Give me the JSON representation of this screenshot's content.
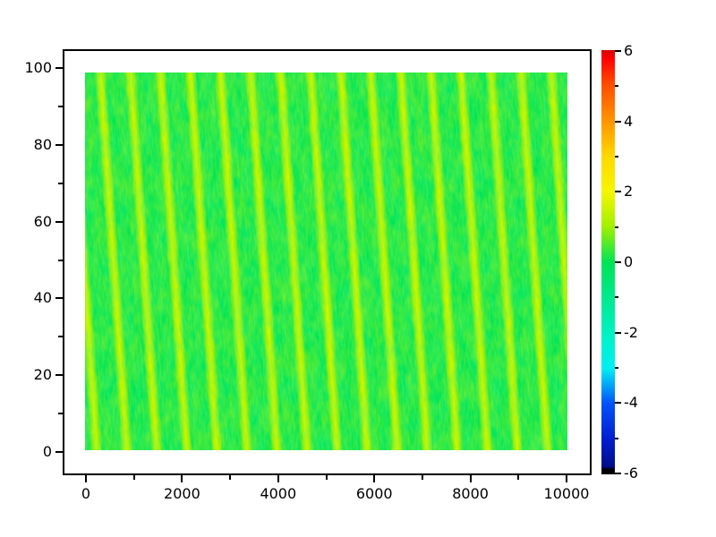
{
  "figure": {
    "background": "#ffffff",
    "text_color": "#000000",
    "axis_line_color": "#000000",
    "title": ""
  },
  "chart_data": {
    "type": "heatmap",
    "title": "",
    "grid": false,
    "x_axis": {
      "label": "",
      "min": 0,
      "max": 10000,
      "major_ticks": [
        0,
        2000,
        4000,
        6000,
        8000,
        10000
      ],
      "major_tick_labels": [
        "0",
        "2000",
        "4000",
        "6000",
        "8000",
        "10000"
      ],
      "minor_ticks": [
        1000,
        3000,
        5000,
        7000,
        9000
      ]
    },
    "y_axis": {
      "label": "",
      "min": 0,
      "max": 100,
      "major_ticks": [
        0,
        20,
        40,
        60,
        80,
        100
      ],
      "major_tick_labels": [
        "0",
        "20",
        "40",
        "60",
        "80",
        "100"
      ],
      "minor_ticks": [
        10,
        30,
        50,
        70,
        90
      ]
    },
    "colorbar": {
      "position": "right",
      "min": -6,
      "max": 6,
      "major_ticks": [
        6,
        4,
        2,
        0,
        -2,
        -4,
        -6
      ],
      "major_tick_labels": [
        "6",
        "4",
        "2",
        "0",
        "-2",
        "-4",
        "-6"
      ],
      "minor_ticks": [
        5,
        3,
        1,
        -1,
        -3,
        -5
      ],
      "gradient_stops": [
        {
          "color": "#d40000",
          "pos": 0
        },
        {
          "color": "#ff0000",
          "pos": 2
        },
        {
          "color": "#ff5000",
          "pos": 8.3
        },
        {
          "color": "#ff9400",
          "pos": 16.7
        },
        {
          "color": "#ffd800",
          "pos": 25
        },
        {
          "color": "#f6f600",
          "pos": 33.3
        },
        {
          "color": "#a0f000",
          "pos": 41.7
        },
        {
          "color": "#00e455",
          "pos": 50
        },
        {
          "color": "#00e98d",
          "pos": 58.3
        },
        {
          "color": "#00f2c2",
          "pos": 66.7
        },
        {
          "color": "#00eff2",
          "pos": 75
        },
        {
          "color": "#0053fa",
          "pos": 83.3
        },
        {
          "color": "#001ed0",
          "pos": 91.7
        },
        {
          "color": "#000d86",
          "pos": 98.2
        },
        {
          "color": "#000000",
          "pos": 98.9
        },
        {
          "color": "#000000",
          "pos": 100
        }
      ]
    },
    "field": {
      "description": "Random scalar field over x:0..10000, y:0..100 shown with a jet colormap scaled to [-6,6]. Values hover near 0 (green) with diagonal stripe ridges near +1.5 (yellow-green) and speckle noise.",
      "z_range_displayed": [
        -6,
        6
      ],
      "mean_value": 0,
      "stripe_peak_value": 1.5,
      "stripe_count_across_x": 16,
      "stripe_period_x_units": 620,
      "stripe_tilt_deg_from_vertical": 4,
      "stripe_lean": "top-left",
      "palette": {
        "background_green": "#00e455",
        "stripe_yellow_green": "#a4ef00",
        "stripe_highlight": "#d0f600",
        "teal_mottle": "#00eda6",
        "grain_yellow": "#e0f800",
        "grain_green": "#00cc33"
      }
    }
  }
}
